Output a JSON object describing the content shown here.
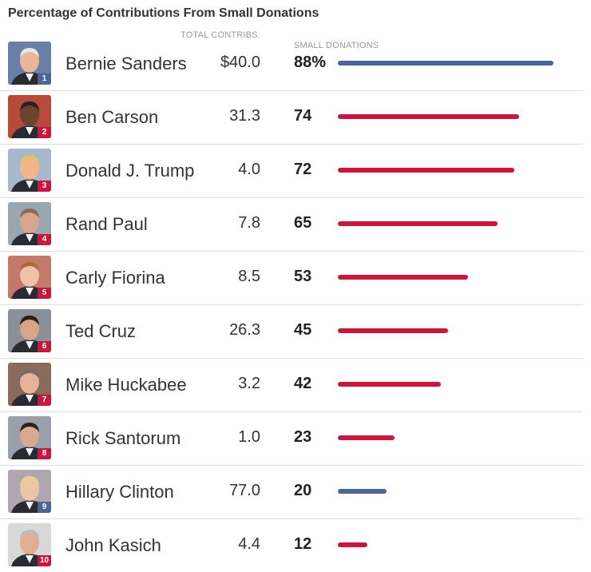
{
  "title": "Percentage of Contributions From Small Donations",
  "headers": {
    "total": "TOTAL CONTRIBS.",
    "small": "SMALL DONATIONS"
  },
  "colors": {
    "democrat": "#4b6596",
    "republican": "#c8163e"
  },
  "chart_data": {
    "type": "bar",
    "title": "Percentage of Contributions From Small Donations",
    "categories": [
      "Bernie Sanders",
      "Ben Carson",
      "Donald J. Trump",
      "Rand Paul",
      "Carly Fiorina",
      "Ted Cruz",
      "Mike Huckabee",
      "Rick Santorum",
      "Hillary Clinton",
      "John Kasich"
    ],
    "series": [
      {
        "name": "Small Donations",
        "values": [
          88,
          74,
          72,
          65,
          53,
          45,
          42,
          23,
          20,
          12
        ]
      }
    ],
    "ylim": [
      0,
      100
    ]
  },
  "rows": [
    {
      "rank": "1",
      "name": "Bernie Sanders",
      "total": "$40.0",
      "pct_label": "88%",
      "pct": 88,
      "party": "democrat"
    },
    {
      "rank": "2",
      "name": "Ben Carson",
      "total": "31.3",
      "pct_label": "74",
      "pct": 74,
      "party": "republican"
    },
    {
      "rank": "3",
      "name": "Donald J. Trump",
      "total": "4.0",
      "pct_label": "72",
      "pct": 72,
      "party": "republican"
    },
    {
      "rank": "4",
      "name": "Rand Paul",
      "total": "7.8",
      "pct_label": "65",
      "pct": 65,
      "party": "republican"
    },
    {
      "rank": "5",
      "name": "Carly Fiorina",
      "total": "8.5",
      "pct_label": "53",
      "pct": 53,
      "party": "republican"
    },
    {
      "rank": "6",
      "name": "Ted Cruz",
      "total": "26.3",
      "pct_label": "45",
      "pct": 45,
      "party": "republican"
    },
    {
      "rank": "7",
      "name": "Mike Huckabee",
      "total": "3.2",
      "pct_label": "42",
      "pct": 42,
      "party": "republican"
    },
    {
      "rank": "8",
      "name": "Rick Santorum",
      "total": "1.0",
      "pct_label": "23",
      "pct": 23,
      "party": "republican"
    },
    {
      "rank": "9",
      "name": "Hillary Clinton",
      "total": "77.0",
      "pct_label": "20",
      "pct": 20,
      "party": "democrat"
    },
    {
      "rank": "10",
      "name": "John Kasich",
      "total": "4.4",
      "pct_label": "12",
      "pct": 12,
      "party": "republican"
    }
  ]
}
